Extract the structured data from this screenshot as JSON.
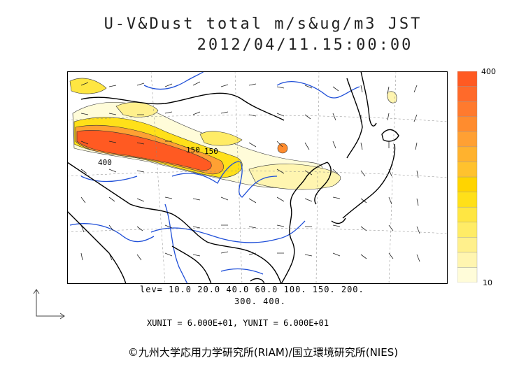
{
  "header": {
    "title_line1": "U-V&Dust total m/s&ug/m3 JST",
    "title_line2": "2012/04/11.15:00:00"
  },
  "colorbar": {
    "max_label": "400",
    "min_label": "10",
    "colors": [
      "#fffcd9",
      "#fff5b0",
      "#fff08c",
      "#ffec66",
      "#ffe642",
      "#ffe019",
      "#ffd400",
      "#ffc22e",
      "#ffb22e",
      "#ffa033",
      "#ff8c2e",
      "#ff7a2e",
      "#ff6a2a",
      "#ff5a22"
    ]
  },
  "legend": {
    "lev_line1": "lev= 10.0 20.0 40.0 60.0 100. 150. 200.",
    "lev_line2": "300. 400."
  },
  "units": {
    "text": "XUNIT = 6.000E+01, YUNIT = 6.000E+01"
  },
  "contour_labels": {
    "a": "150",
    "b": "150",
    "c": "400"
  },
  "credit": {
    "text": "©九州大学応用力学研究所(RIAM)/国立環境研究所(NIES)"
  },
  "colors": {
    "dust_core": "#ff5a22",
    "dust_mid": "#ffd400",
    "dust_low": "#fff5b0",
    "rivers": "#1f4fd8",
    "coast": "#000000"
  }
}
